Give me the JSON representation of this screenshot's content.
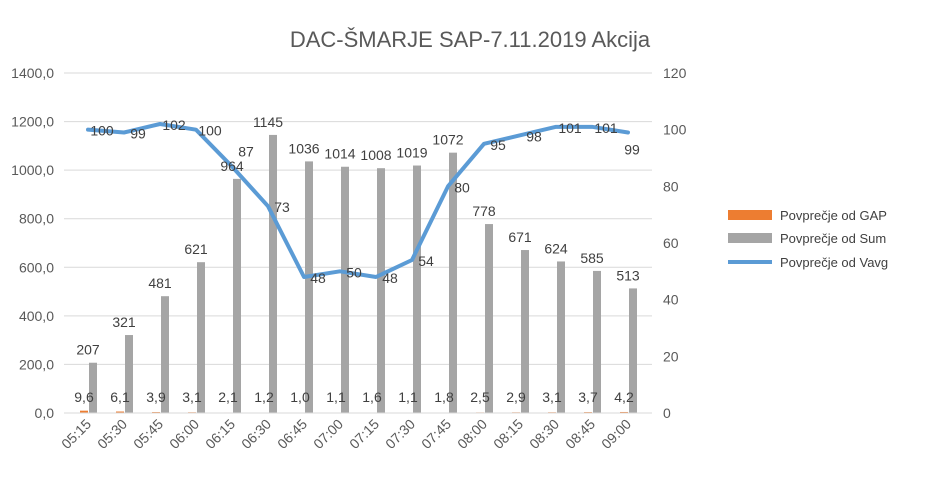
{
  "chart_data": {
    "type": "bar+line",
    "title": "DAC-ŠMARJE SAP-7.11.2019 Akcija",
    "categories": [
      "05:15",
      "05:30",
      "05:45",
      "06:00",
      "06:15",
      "06:30",
      "06:45",
      "07:00",
      "07:15",
      "07:30",
      "07:45",
      "08:00",
      "08:15",
      "08:30",
      "08:45",
      "09:00"
    ],
    "series": [
      {
        "name": "Povprečje od GAP",
        "type": "bar",
        "axis": "left",
        "color": "#ED7D31",
        "values": [
          9.6,
          6.1,
          3.9,
          3.1,
          2.1,
          1.2,
          1.0,
          1.1,
          1.6,
          1.1,
          1.8,
          2.5,
          2.9,
          3.1,
          3.7,
          4.2
        ],
        "labels": [
          "9,6",
          "6,1",
          "3,9",
          "3,1",
          "2,1",
          "1,2",
          "1,0",
          "1,1",
          "1,6",
          "1,1",
          "1,8",
          "2,5",
          "2,9",
          "3,1",
          "3,7",
          "4,2"
        ]
      },
      {
        "name": "Povprečje od Sum",
        "type": "bar",
        "axis": "left",
        "color": "#A5A5A5",
        "values": [
          207,
          321,
          481,
          621,
          964,
          1145,
          1036,
          1014,
          1008,
          1019,
          1072,
          778,
          671,
          624,
          585,
          513
        ],
        "labels": [
          "207",
          "321",
          "481",
          "621",
          "964",
          "1145",
          "1036",
          "1014",
          "1008",
          "1019",
          "1072",
          "778",
          "671",
          "624",
          "585",
          "513"
        ]
      },
      {
        "name": "Povprečje od Vavg",
        "type": "line",
        "axis": "right",
        "color": "#5B9BD5",
        "values": [
          100,
          99,
          102,
          100,
          87,
          73,
          48,
          50,
          48,
          54,
          80,
          95,
          98,
          101,
          101,
          99
        ],
        "labels": [
          "100",
          "99",
          "102",
          "100",
          "87",
          "73",
          "48",
          "50",
          "48",
          "54",
          "80",
          "95",
          "98",
          "101",
          "101",
          "99"
        ]
      }
    ],
    "left_axis": {
      "range": [
        0,
        1400
      ],
      "ticks": [
        "0,0",
        "200,0",
        "400,0",
        "600,0",
        "800,0",
        "1000,0",
        "1200,0",
        "1400,0"
      ]
    },
    "right_axis": {
      "range": [
        0,
        120
      ],
      "ticks": [
        "0",
        "20",
        "40",
        "60",
        "80",
        "100",
        "120"
      ]
    },
    "grid": true,
    "legend": "right"
  }
}
